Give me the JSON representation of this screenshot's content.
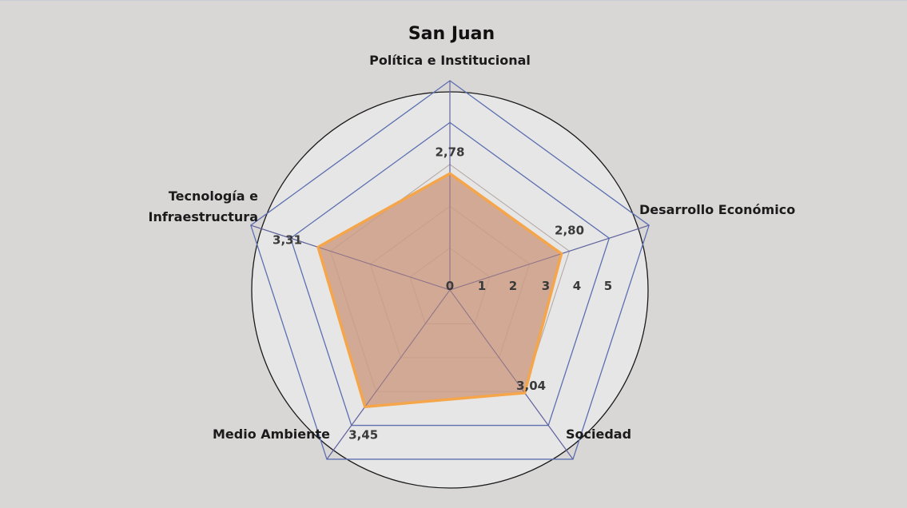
{
  "chart_data": {
    "type": "radar",
    "title": "San Juan",
    "categories": [
      "Política e Institucional",
      "Desarrollo Económico",
      "Sociedad",
      "Medio Ambiente",
      "Tecnología e Infraestructura"
    ],
    "category_lines": [
      [
        "Política e Institucional"
      ],
      [
        "Desarrollo Económico"
      ],
      [
        "Sociedad"
      ],
      [
        "Medio Ambiente"
      ],
      [
        "Tecnología e",
        "Infraestructura"
      ]
    ],
    "series": [
      {
        "values": [
          2.78,
          2.8,
          3.04,
          3.45,
          3.31
        ],
        "data_labels": [
          "2,78",
          "2,80",
          "3,04",
          "3,45",
          "3,31"
        ]
      }
    ],
    "rlim": [
      0,
      5
    ],
    "ticks": [
      0,
      1,
      2,
      3,
      4,
      5
    ],
    "tick_labels": [
      "0",
      "1",
      "2",
      "3",
      "4",
      "5"
    ],
    "grid": true,
    "colors": {
      "background": "#d9d6d6",
      "plot_fill": "#e7e6e6",
      "grid_inner": "#b5aaa6",
      "grid_outer": "#5b6fb1",
      "series_line": "#f5a54a",
      "series_fill": "#cc9e86"
    }
  }
}
